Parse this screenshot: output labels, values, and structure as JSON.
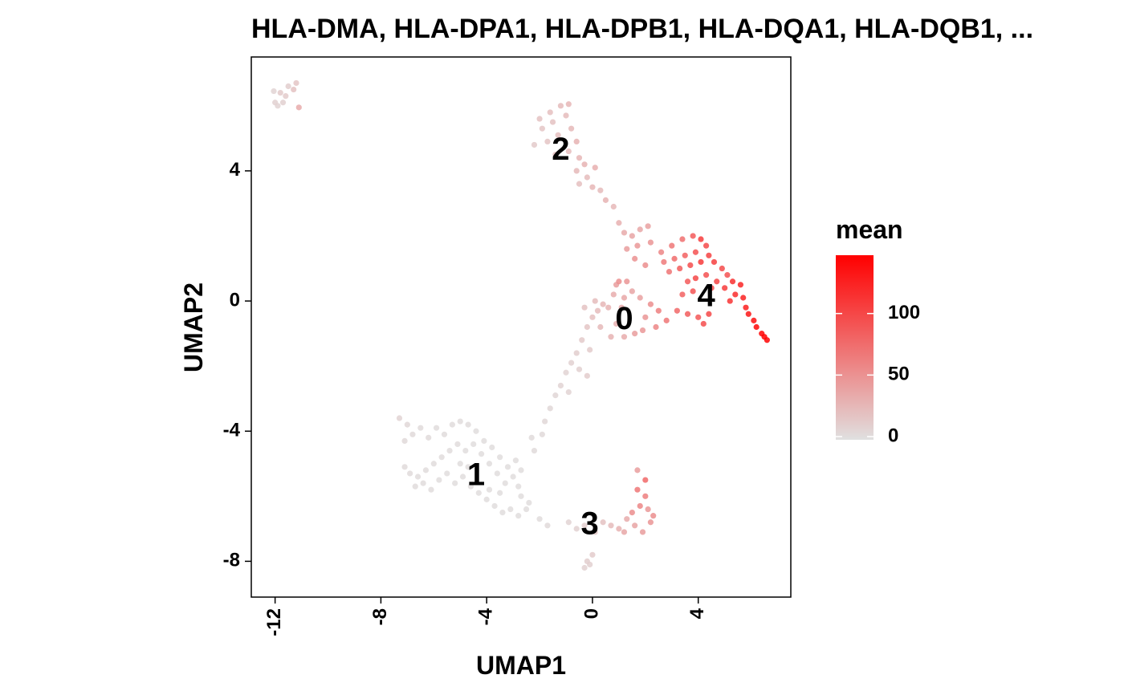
{
  "chart_data": {
    "type": "scatter",
    "title": "HLA-DMA, HLA-DPA1, HLA-DPB1, HLA-DQA1, HLA-DQB1, ...",
    "xlabel": "UMAP1",
    "ylabel": "UMAP2",
    "xlim": [
      -12.9,
      7.5
    ],
    "ylim": [
      -9.1,
      7.5
    ],
    "x_ticks": [
      -12,
      -8,
      -4,
      0,
      4
    ],
    "y_ticks": [
      -8,
      -4,
      0,
      4
    ],
    "grid": false,
    "color_scale": {
      "title": "mean",
      "low_color": "#e0e0e0",
      "high_color": "#ff0000",
      "min": 0,
      "max": 150,
      "ticks": [
        0,
        50,
        100
      ]
    },
    "cluster_labels": [
      {
        "label": "0",
        "x": 1.2,
        "y": -0.6
      },
      {
        "label": "1",
        "x": -4.4,
        "y": -5.4
      },
      {
        "label": "2",
        "x": -1.2,
        "y": 4.6
      },
      {
        "label": "3",
        "x": -0.1,
        "y": -6.9
      },
      {
        "label": "4",
        "x": 4.3,
        "y": 0.1
      }
    ],
    "points": [
      {
        "x": -12.0,
        "y": 6.1,
        "v": 10
      },
      {
        "x": -11.8,
        "y": 6.4,
        "v": 15
      },
      {
        "x": -11.5,
        "y": 6.6,
        "v": 12
      },
      {
        "x": -11.2,
        "y": 6.7,
        "v": 18
      },
      {
        "x": -11.9,
        "y": 6.0,
        "v": 8
      },
      {
        "x": -11.6,
        "y": 6.3,
        "v": 14
      },
      {
        "x": -11.3,
        "y": 6.5,
        "v": 20
      },
      {
        "x": -11.1,
        "y": 5.95,
        "v": 35
      },
      {
        "x": -12.05,
        "y": 6.45,
        "v": 9
      },
      {
        "x": -11.7,
        "y": 6.1,
        "v": 11
      },
      {
        "x": -2.0,
        "y": 5.6,
        "v": 20
      },
      {
        "x": -1.6,
        "y": 5.8,
        "v": 22
      },
      {
        "x": -1.2,
        "y": 6.0,
        "v": 25
      },
      {
        "x": -0.9,
        "y": 6.05,
        "v": 28
      },
      {
        "x": -1.9,
        "y": 5.3,
        "v": 18
      },
      {
        "x": -1.5,
        "y": 5.5,
        "v": 20
      },
      {
        "x": -1.0,
        "y": 5.7,
        "v": 24
      },
      {
        "x": -2.2,
        "y": 4.8,
        "v": 15
      },
      {
        "x": -1.7,
        "y": 4.9,
        "v": 19
      },
      {
        "x": -1.3,
        "y": 5.1,
        "v": 22
      },
      {
        "x": -0.8,
        "y": 5.3,
        "v": 26
      },
      {
        "x": -0.6,
        "y": 4.9,
        "v": 30
      },
      {
        "x": -1.4,
        "y": 4.5,
        "v": 21
      },
      {
        "x": -0.9,
        "y": 4.6,
        "v": 24
      },
      {
        "x": -0.5,
        "y": 4.4,
        "v": 28
      },
      {
        "x": -0.3,
        "y": 4.2,
        "v": 30
      },
      {
        "x": -0.6,
        "y": 4.0,
        "v": 26
      },
      {
        "x": -0.2,
        "y": 3.8,
        "v": 24
      },
      {
        "x": 0.1,
        "y": 4.1,
        "v": 33
      },
      {
        "x": -0.5,
        "y": 3.6,
        "v": 22
      },
      {
        "x": 0.0,
        "y": 3.5,
        "v": 28
      },
      {
        "x": 0.3,
        "y": 3.4,
        "v": 25
      },
      {
        "x": 0.5,
        "y": 3.1,
        "v": 30
      },
      {
        "x": 0.8,
        "y": 2.9,
        "v": 27
      },
      {
        "x": 1.0,
        "y": 2.4,
        "v": 32
      },
      {
        "x": 1.2,
        "y": 2.1,
        "v": 36
      },
      {
        "x": 1.5,
        "y": 2.0,
        "v": 40
      },
      {
        "x": 1.8,
        "y": 2.2,
        "v": 38
      },
      {
        "x": 2.1,
        "y": 2.3,
        "v": 42
      },
      {
        "x": 1.3,
        "y": 1.6,
        "v": 45
      },
      {
        "x": 1.7,
        "y": 1.7,
        "v": 48
      },
      {
        "x": 2.2,
        "y": 1.8,
        "v": 50
      },
      {
        "x": 1.6,
        "y": 1.3,
        "v": 52
      },
      {
        "x": 2.0,
        "y": 1.1,
        "v": 55
      },
      {
        "x": 2.6,
        "y": 1.5,
        "v": 60
      },
      {
        "x": 3.0,
        "y": 1.7,
        "v": 70
      },
      {
        "x": 3.4,
        "y": 1.9,
        "v": 75
      },
      {
        "x": 3.8,
        "y": 2.0,
        "v": 90
      },
      {
        "x": 4.1,
        "y": 1.9,
        "v": 110
      },
      {
        "x": 4.3,
        "y": 1.7,
        "v": 100
      },
      {
        "x": 2.7,
        "y": 1.2,
        "v": 68
      },
      {
        "x": 3.1,
        "y": 1.3,
        "v": 78
      },
      {
        "x": 3.5,
        "y": 1.4,
        "v": 85
      },
      {
        "x": 3.9,
        "y": 1.5,
        "v": 95
      },
      {
        "x": 4.4,
        "y": 1.4,
        "v": 105
      },
      {
        "x": 2.9,
        "y": 0.9,
        "v": 72
      },
      {
        "x": 3.3,
        "y": 1.0,
        "v": 88
      },
      {
        "x": 3.7,
        "y": 1.1,
        "v": 98
      },
      {
        "x": 4.1,
        "y": 1.2,
        "v": 112
      },
      {
        "x": 4.6,
        "y": 1.2,
        "v": 108
      },
      {
        "x": 4.9,
        "y": 1.0,
        "v": 100
      },
      {
        "x": 5.1,
        "y": 0.8,
        "v": 95
      },
      {
        "x": 5.3,
        "y": 0.6,
        "v": 118
      },
      {
        "x": 5.6,
        "y": 0.5,
        "v": 125
      },
      {
        "x": 3.6,
        "y": 0.6,
        "v": 90
      },
      {
        "x": 3.9,
        "y": 0.7,
        "v": 102
      },
      {
        "x": 4.3,
        "y": 0.8,
        "v": 96
      },
      {
        "x": 4.7,
        "y": 0.6,
        "v": 104
      },
      {
        "x": 5.0,
        "y": 0.4,
        "v": 110
      },
      {
        "x": 5.4,
        "y": 0.2,
        "v": 120
      },
      {
        "x": 5.7,
        "y": 0.1,
        "v": 128
      },
      {
        "x": 3.4,
        "y": 0.2,
        "v": 85
      },
      {
        "x": 3.8,
        "y": 0.3,
        "v": 94
      },
      {
        "x": 4.5,
        "y": 0.4,
        "v": 100
      },
      {
        "x": 5.2,
        "y": 0.0,
        "v": 115
      },
      {
        "x": 5.8,
        "y": -0.2,
        "v": 130
      },
      {
        "x": 5.9,
        "y": -0.4,
        "v": 135
      },
      {
        "x": 6.1,
        "y": -0.6,
        "v": 140
      },
      {
        "x": 6.2,
        "y": -0.8,
        "v": 145
      },
      {
        "x": 6.4,
        "y": -1.0,
        "v": 148
      },
      {
        "x": 6.5,
        "y": -1.1,
        "v": 150
      },
      {
        "x": 6.6,
        "y": -1.2,
        "v": 147
      },
      {
        "x": 3.2,
        "y": -0.3,
        "v": 80
      },
      {
        "x": 3.6,
        "y": -0.4,
        "v": 88
      },
      {
        "x": 4.0,
        "y": -0.5,
        "v": 92
      },
      {
        "x": 4.2,
        "y": -0.7,
        "v": 98
      },
      {
        "x": 4.4,
        "y": -0.4,
        "v": 102
      },
      {
        "x": 2.8,
        "y": -0.6,
        "v": 70
      },
      {
        "x": 2.5,
        "y": -0.3,
        "v": 65
      },
      {
        "x": 2.2,
        "y": -0.1,
        "v": 55
      },
      {
        "x": 2.0,
        "y": -0.5,
        "v": 50
      },
      {
        "x": 2.4,
        "y": -0.8,
        "v": 60
      },
      {
        "x": 1.9,
        "y": -0.9,
        "v": 48
      },
      {
        "x": 1.6,
        "y": -1.0,
        "v": 45
      },
      {
        "x": 1.8,
        "y": 0.1,
        "v": 42
      },
      {
        "x": 1.5,
        "y": 0.3,
        "v": 40
      },
      {
        "x": 1.2,
        "y": 0.1,
        "v": 38
      },
      {
        "x": 1.1,
        "y": -0.2,
        "v": 36
      },
      {
        "x": 0.9,
        "y": 0.5,
        "v": 45
      },
      {
        "x": 1.3,
        "y": 0.6,
        "v": 50
      },
      {
        "x": 0.8,
        "y": 0.2,
        "v": 34
      },
      {
        "x": 0.6,
        "y": -0.2,
        "v": 30
      },
      {
        "x": 0.4,
        "y": -0.1,
        "v": 28
      },
      {
        "x": 0.2,
        "y": -0.3,
        "v": 25
      },
      {
        "x": 0.9,
        "y": -0.7,
        "v": 32
      },
      {
        "x": 1.2,
        "y": -1.1,
        "v": 35
      },
      {
        "x": 0.7,
        "y": -1.1,
        "v": 30
      },
      {
        "x": 0.3,
        "y": -0.8,
        "v": 26
      },
      {
        "x": 0.0,
        "y": -0.5,
        "v": 22
      },
      {
        "x": -0.3,
        "y": -0.2,
        "v": 20
      },
      {
        "x": 0.1,
        "y": 0.0,
        "v": 24
      },
      {
        "x": 1.0,
        "y": 0.6,
        "v": 55
      },
      {
        "x": -0.2,
        "y": -0.8,
        "v": 18
      },
      {
        "x": -0.4,
        "y": -1.2,
        "v": 15
      },
      {
        "x": -0.1,
        "y": -1.5,
        "v": 14
      },
      {
        "x": -0.6,
        "y": -1.6,
        "v": 12
      },
      {
        "x": -0.8,
        "y": -1.9,
        "v": 10
      },
      {
        "x": -0.5,
        "y": -2.1,
        "v": 11
      },
      {
        "x": -0.2,
        "y": -2.3,
        "v": 13
      },
      {
        "x": -1.0,
        "y": -2.2,
        "v": 9
      },
      {
        "x": -1.2,
        "y": -2.6,
        "v": 8
      },
      {
        "x": -0.9,
        "y": -2.8,
        "v": 9
      },
      {
        "x": -1.4,
        "y": -2.9,
        "v": 7
      },
      {
        "x": -1.6,
        "y": -3.3,
        "v": 6
      },
      {
        "x": -1.8,
        "y": -3.7,
        "v": 6
      },
      {
        "x": -1.9,
        "y": -4.1,
        "v": 5
      },
      {
        "x": -2.2,
        "y": -4.6,
        "v": 4
      },
      {
        "x": -2.3,
        "y": -4.2,
        "v": 4
      },
      {
        "x": -7.3,
        "y": -3.6,
        "v": 8
      },
      {
        "x": -7.0,
        "y": -3.8,
        "v": 6
      },
      {
        "x": -6.8,
        "y": -4.1,
        "v": 5
      },
      {
        "x": -7.1,
        "y": -4.3,
        "v": 5
      },
      {
        "x": -6.5,
        "y": -3.9,
        "v": 4
      },
      {
        "x": -6.2,
        "y": -4.2,
        "v": 4
      },
      {
        "x": -5.9,
        "y": -3.9,
        "v": 3
      },
      {
        "x": -5.6,
        "y": -4.1,
        "v": 3
      },
      {
        "x": -5.3,
        "y": -3.8,
        "v": 3
      },
      {
        "x": -5.0,
        "y": -3.7,
        "v": 3
      },
      {
        "x": -4.7,
        "y": -3.8,
        "v": 3
      },
      {
        "x": -4.4,
        "y": -4.0,
        "v": 2
      },
      {
        "x": -4.1,
        "y": -4.3,
        "v": 2
      },
      {
        "x": -3.8,
        "y": -4.5,
        "v": 2
      },
      {
        "x": -3.5,
        "y": -4.8,
        "v": 2
      },
      {
        "x": -3.2,
        "y": -5.1,
        "v": 2
      },
      {
        "x": -3.0,
        "y": -5.4,
        "v": 2
      },
      {
        "x": -2.8,
        "y": -5.7,
        "v": 2
      },
      {
        "x": -3.3,
        "y": -5.6,
        "v": 2
      },
      {
        "x": -3.6,
        "y": -5.3,
        "v": 2
      },
      {
        "x": -3.9,
        "y": -5.0,
        "v": 2
      },
      {
        "x": -4.2,
        "y": -4.7,
        "v": 2
      },
      {
        "x": -4.5,
        "y": -4.4,
        "v": 2
      },
      {
        "x": -4.8,
        "y": -4.6,
        "v": 2
      },
      {
        "x": -5.1,
        "y": -4.4,
        "v": 3
      },
      {
        "x": -5.4,
        "y": -4.6,
        "v": 3
      },
      {
        "x": -5.7,
        "y": -4.8,
        "v": 3
      },
      {
        "x": -6.0,
        "y": -5.0,
        "v": 3
      },
      {
        "x": -6.3,
        "y": -5.2,
        "v": 3
      },
      {
        "x": -6.6,
        "y": -5.4,
        "v": 3
      },
      {
        "x": -6.9,
        "y": -5.3,
        "v": 4
      },
      {
        "x": -7.1,
        "y": -5.1,
        "v": 4
      },
      {
        "x": -6.7,
        "y": -5.7,
        "v": 3
      },
      {
        "x": -6.4,
        "y": -5.6,
        "v": 3
      },
      {
        "x": -6.1,
        "y": -5.8,
        "v": 3
      },
      {
        "x": -5.8,
        "y": -5.5,
        "v": 2
      },
      {
        "x": -5.5,
        "y": -5.3,
        "v": 2
      },
      {
        "x": -5.2,
        "y": -5.6,
        "v": 2
      },
      {
        "x": -4.9,
        "y": -5.4,
        "v": 2
      },
      {
        "x": -4.6,
        "y": -5.7,
        "v": 2
      },
      {
        "x": -4.3,
        "y": -5.9,
        "v": 2
      },
      {
        "x": -4.0,
        "y": -6.1,
        "v": 2
      },
      {
        "x": -3.7,
        "y": -6.3,
        "v": 2
      },
      {
        "x": -3.4,
        "y": -6.5,
        "v": 2
      },
      {
        "x": -3.1,
        "y": -6.4,
        "v": 2
      },
      {
        "x": -2.8,
        "y": -6.6,
        "v": 2
      },
      {
        "x": -2.5,
        "y": -6.4,
        "v": 2
      },
      {
        "x": -2.4,
        "y": -6.2,
        "v": 2
      },
      {
        "x": -2.7,
        "y": -6.0,
        "v": 2
      },
      {
        "x": -2.0,
        "y": -6.7,
        "v": 3
      },
      {
        "x": -1.7,
        "y": -6.9,
        "v": 5
      },
      {
        "x": -5.0,
        "y": -5.0,
        "v": 2
      },
      {
        "x": -4.7,
        "y": -5.1,
        "v": 2
      },
      {
        "x": -3.9,
        "y": -5.8,
        "v": 2
      },
      {
        "x": -3.5,
        "y": -5.9,
        "v": 2
      },
      {
        "x": -2.9,
        "y": -4.9,
        "v": 2
      },
      {
        "x": -2.7,
        "y": -5.2,
        "v": 2
      },
      {
        "x": -0.9,
        "y": -6.8,
        "v": 8
      },
      {
        "x": -0.6,
        "y": -7.0,
        "v": 10
      },
      {
        "x": -0.3,
        "y": -6.9,
        "v": 12
      },
      {
        "x": 0.1,
        "y": -7.1,
        "v": 15
      },
      {
        "x": 0.4,
        "y": -6.8,
        "v": 20
      },
      {
        "x": 0.7,
        "y": -6.9,
        "v": 25
      },
      {
        "x": 1.0,
        "y": -7.0,
        "v": 30
      },
      {
        "x": 1.3,
        "y": -6.7,
        "v": 35
      },
      {
        "x": 1.6,
        "y": -6.9,
        "v": 40
      },
      {
        "x": 1.9,
        "y": -7.1,
        "v": 45
      },
      {
        "x": 2.2,
        "y": -6.8,
        "v": 50
      },
      {
        "x": 1.5,
        "y": -6.5,
        "v": 55
      },
      {
        "x": 1.8,
        "y": -6.3,
        "v": 60
      },
      {
        "x": 2.0,
        "y": -6.0,
        "v": 65
      },
      {
        "x": 1.7,
        "y": -5.8,
        "v": 70
      },
      {
        "x": 2.0,
        "y": -5.5,
        "v": 80
      },
      {
        "x": 1.7,
        "y": -5.2,
        "v": 45
      },
      {
        "x": 2.3,
        "y": -6.6,
        "v": 55
      },
      {
        "x": 2.1,
        "y": -6.4,
        "v": 48
      },
      {
        "x": 1.2,
        "y": -7.1,
        "v": 38
      },
      {
        "x": 0.0,
        "y": -7.8,
        "v": 14
      },
      {
        "x": -0.2,
        "y": -8.0,
        "v": 12
      },
      {
        "x": -0.3,
        "y": -8.2,
        "v": 10
      },
      {
        "x": -0.1,
        "y": -8.1,
        "v": 11
      }
    ]
  }
}
